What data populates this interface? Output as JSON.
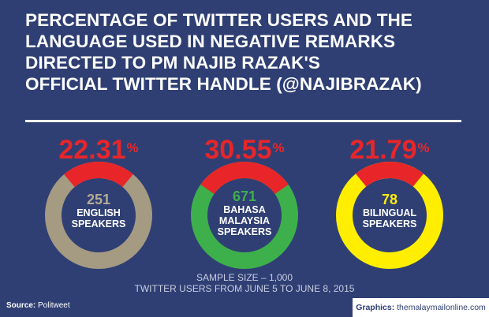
{
  "title_lines": [
    "PERCENTAGE OF TWITTER USERS AND THE",
    "LANGUAGE USED IN NEGATIVE REMARKS",
    "DIRECTED TO PM NAJIB RAZAK'S",
    "OFFICIAL TWITTER HANDLE (@NAJIBRAZAK)"
  ],
  "chart_data": {
    "type": "pie",
    "title": "PERCENTAGE OF TWITTER USERS AND THE LANGUAGE USED IN NEGATIVE REMARKS DIRECTED TO PM NAJIB RAZAK'S OFFICIAL TWITTER HANDLE (@NAJIBRAZAK)",
    "accent_color": "#e8262a",
    "items": [
      {
        "percent": "22.31",
        "percent_value": 22.31,
        "count": "251",
        "label_lines": [
          "ENGLISH",
          "SPEAKERS"
        ],
        "ring_color": "#a59a82",
        "count_color": "#b5ab95"
      },
      {
        "percent": "30.55",
        "percent_value": 30.55,
        "count": "671",
        "label_lines": [
          "BAHASA",
          "MALAYSIA",
          "SPEAKERS"
        ],
        "ring_color": "#3db04b",
        "count_color": "#3db04b"
      },
      {
        "percent": "21.79",
        "percent_value": 21.79,
        "count": "78",
        "label_lines": [
          "BILINGUAL",
          "SPEAKERS"
        ],
        "ring_color": "#ffee00",
        "count_color": "#ffee00"
      }
    ]
  },
  "percent_sign": "%",
  "sample_line1": "SAMPLE SIZE – 1,000",
  "sample_line2": "TWITTER USERS FROM JUNE 5 TO JUNE 8, 2015",
  "source_label": "Source:",
  "source_value": "Politweet",
  "graphics_label": "Graphics:",
  "graphics_value": "themalaymailonline.com"
}
